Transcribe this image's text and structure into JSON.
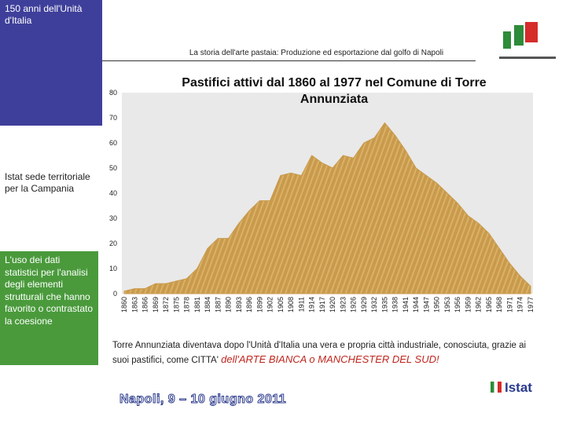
{
  "header": {
    "badge": "150 anni dell'Unità d'Italia",
    "subtitle": "La storia dell'arte pastaia: Produzione ed esportazione dal golfo di Napoli"
  },
  "sidebar": {
    "office": "Istat  sede territoriale per la Campania",
    "topic": "L'uso dei dati statistici per l'analisi degli elementi strutturali che hanno favorito o contrastato  la coesione"
  },
  "chart_data": {
    "type": "area",
    "title": "Pastifici attivi dal 1860 al 1977 nel Comune di Torre Annunziata",
    "categories": [
      "1860",
      "1863",
      "1866",
      "1869",
      "1872",
      "1875",
      "1878",
      "1881",
      "1884",
      "1887",
      "1890",
      "1893",
      "1896",
      "1899",
      "1902",
      "1905",
      "1908",
      "1911",
      "1914",
      "1917",
      "1920",
      "1923",
      "1926",
      "1929",
      "1932",
      "1935",
      "1938",
      "1941",
      "1944",
      "1947",
      "1950",
      "1953",
      "1956",
      "1959",
      "1962",
      "1965",
      "1968",
      "1971",
      "1974",
      "1977"
    ],
    "values": [
      1,
      2,
      2,
      4,
      4,
      5,
      6,
      10,
      18,
      22,
      22,
      28,
      33,
      37,
      37,
      47,
      48,
      47,
      55,
      52,
      50,
      55,
      54,
      60,
      62,
      68,
      63,
      57,
      50,
      47,
      44,
      40,
      36,
      31,
      28,
      24,
      18,
      12,
      7,
      3
    ],
    "color": "#c99a4c",
    "ylim": [
      0,
      80
    ],
    "yticks": [
      0,
      10,
      20,
      30,
      40,
      50,
      60,
      70,
      80
    ]
  },
  "caption": {
    "text": "Torre Annunziata diventava dopo l'Unità d'Italia una vera e propria città industriale, conosciuta, grazie ai suoi pastifici, come CITTA' ",
    "highlight": "dell'ARTE BIANCA o MANCHESTER DEL SUD!"
  },
  "footer": {
    "event": "Napoli,  9 – 10 giugno 2011",
    "logo": "Istat"
  }
}
